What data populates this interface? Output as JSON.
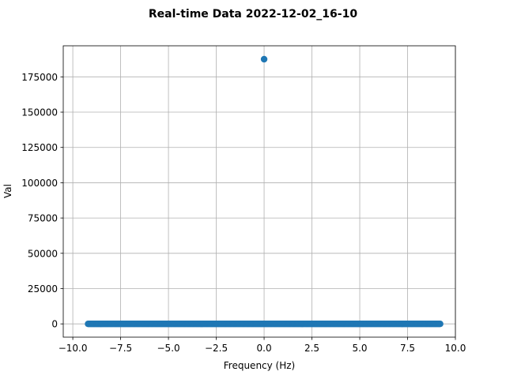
{
  "chart_data": {
    "type": "scatter",
    "title": "Real-time Data 2022-12-02_16-10",
    "xlabel": "Frequency (Hz)",
    "ylabel": "Val",
    "xlim": [
      -10.5,
      10.0
    ],
    "ylim": [
      -9400,
      197000
    ],
    "xticks": [
      -10.0,
      -7.5,
      -5.0,
      -2.5,
      0.0,
      2.5,
      5.0,
      7.5,
      10.0
    ],
    "xtick_labels": [
      "−10.0",
      "−7.5",
      "−5.0",
      "−2.5",
      "0.0",
      "2.5",
      "5.0",
      "7.5",
      "10.0"
    ],
    "yticks": [
      0,
      25000,
      50000,
      75000,
      100000,
      125000,
      150000,
      175000
    ],
    "ytick_labels": [
      "0",
      "25000",
      "50000",
      "75000",
      "100000",
      "125000",
      "150000",
      "175000"
    ],
    "grid": true,
    "marker_color": "#1f77b4",
    "series": [
      {
        "x_range": [
          -9.2,
          9.2
        ],
        "num_points": 369,
        "baseline_value": 0,
        "outlier": {
          "x": 0.0,
          "y": 187500
        }
      }
    ]
  }
}
